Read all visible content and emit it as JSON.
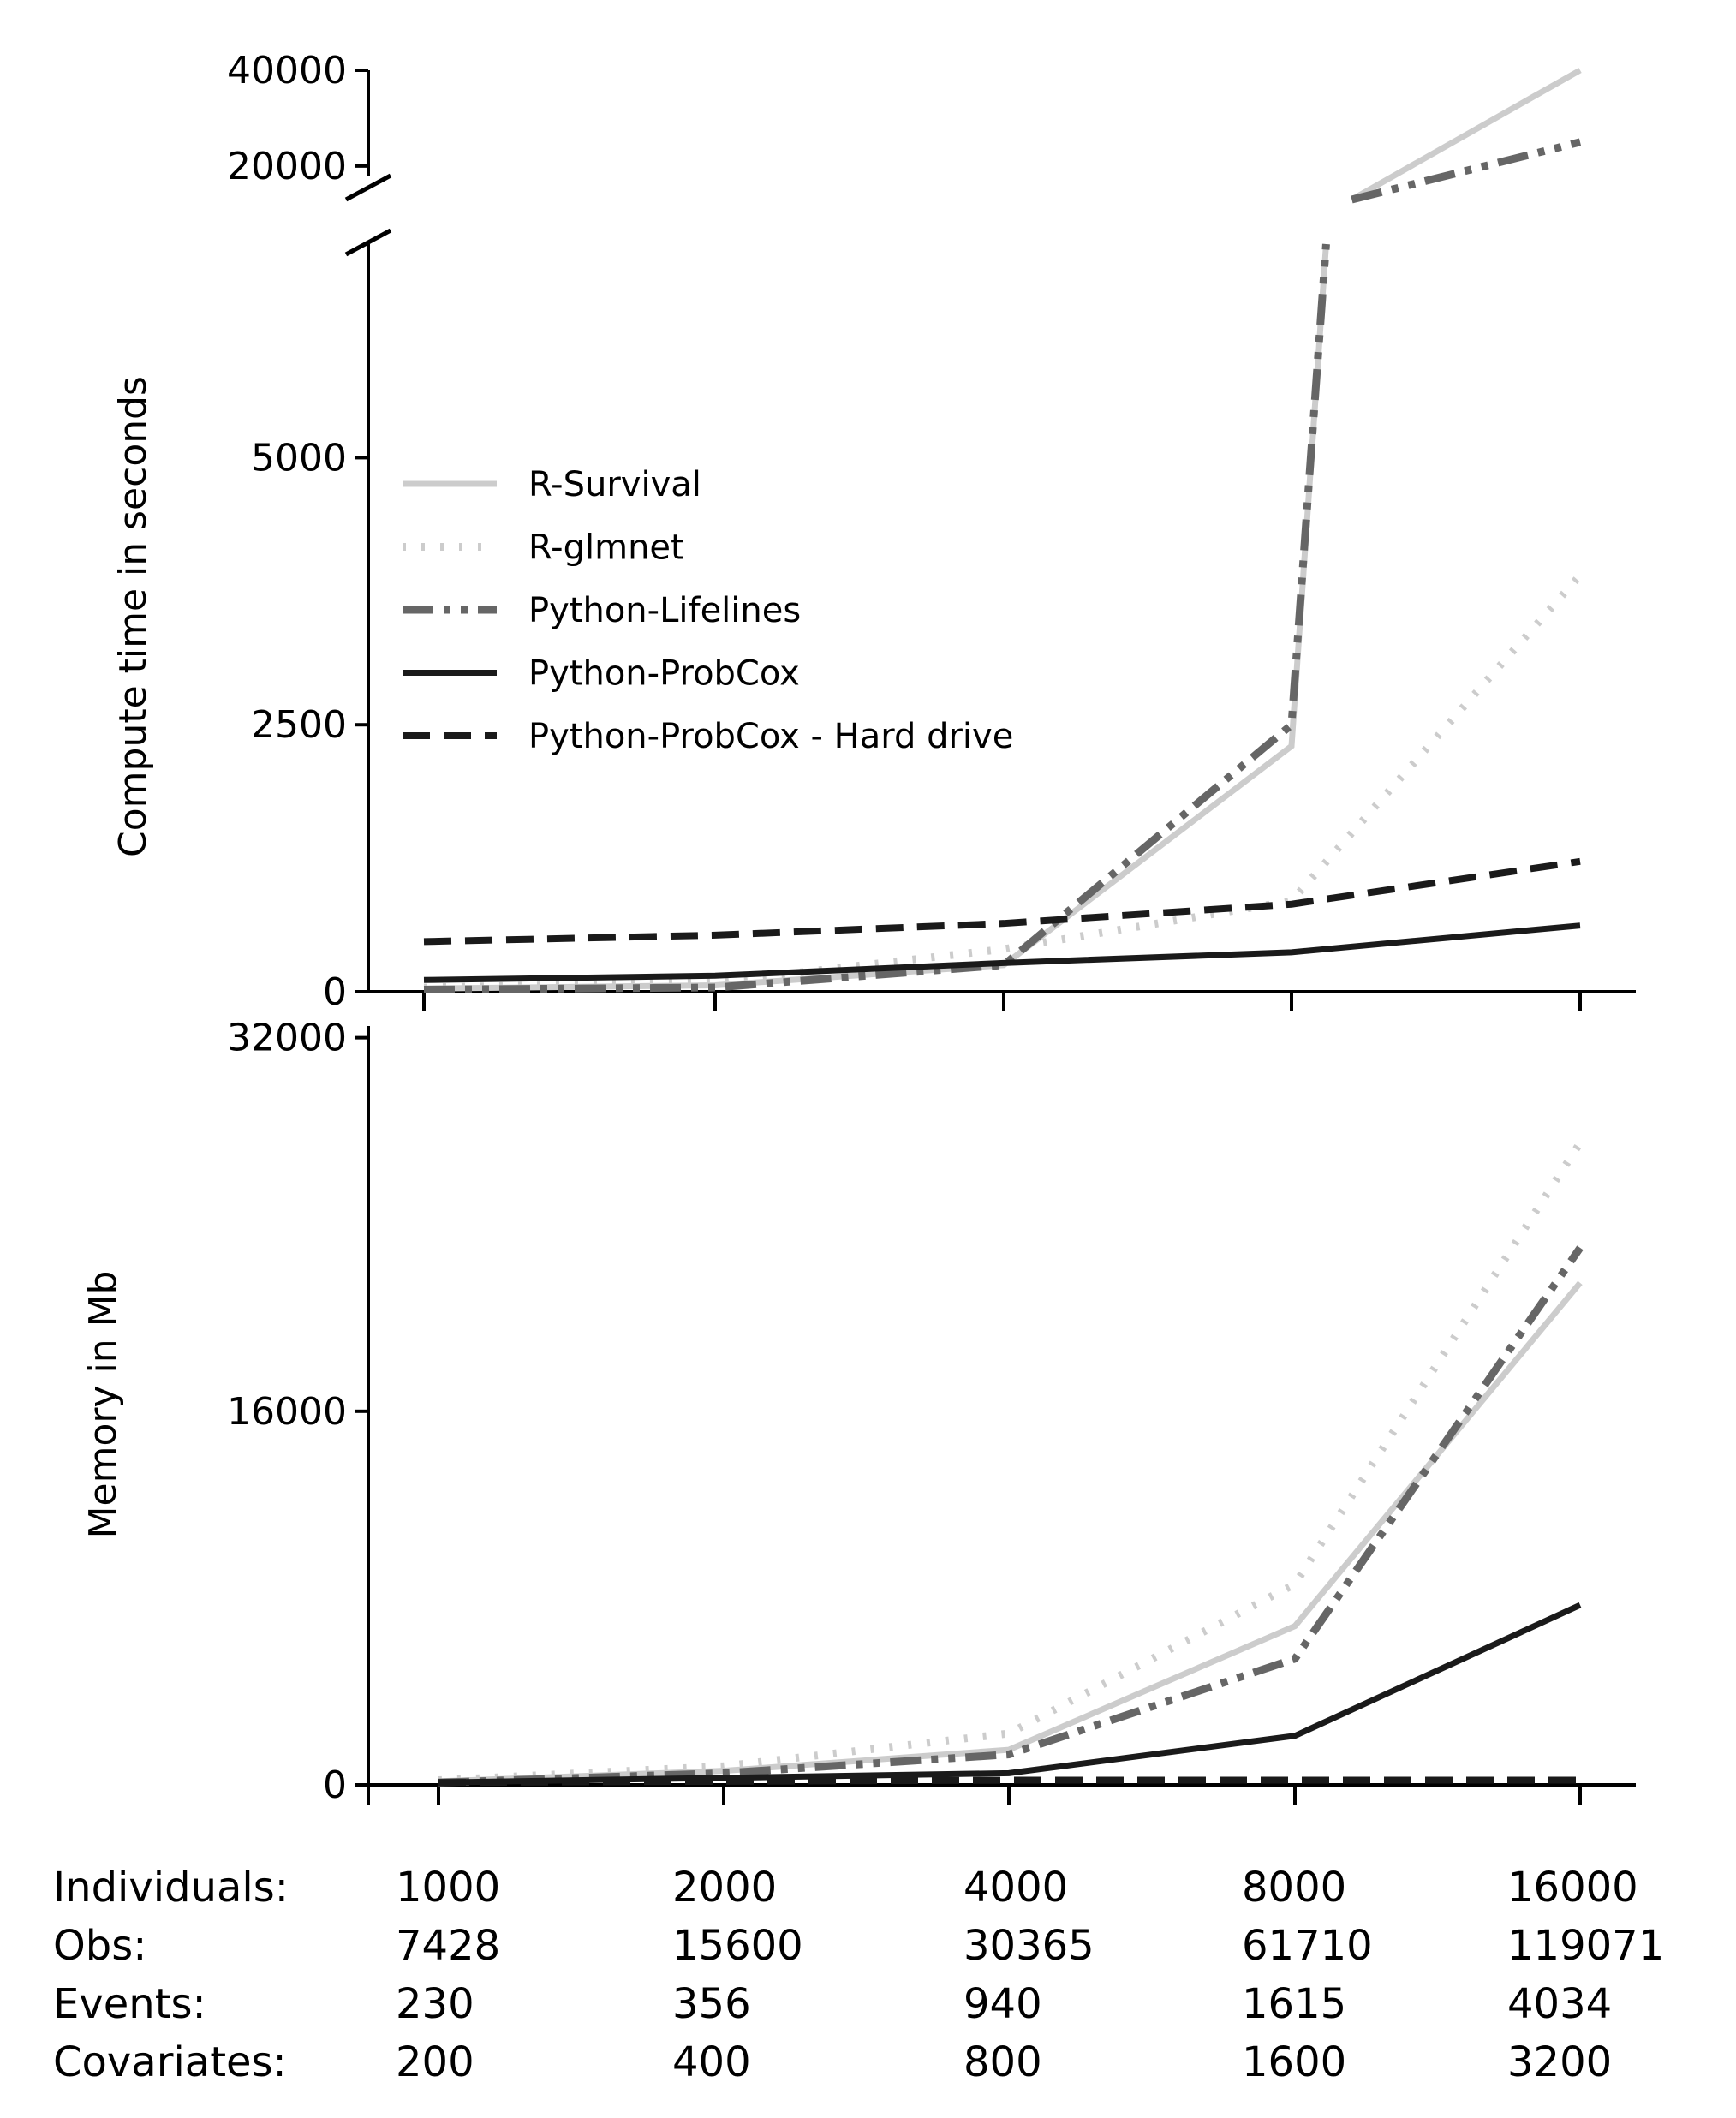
{
  "chart_data": [
    {
      "type": "line",
      "id": "compute",
      "ylabel": "Compute time in seconds",
      "x": [
        1000,
        2000,
        4000,
        8000,
        16000
      ],
      "yticks_lower": [
        0,
        2500,
        5000
      ],
      "yticks_upper": [
        20000,
        40000
      ],
      "ylim_lower": [
        0,
        7000
      ],
      "ylim_upper": [
        13000,
        40000
      ],
      "broken_axis": true,
      "legend": "center-left",
      "series": [
        {
          "name": "R-Survival",
          "values": [
            30,
            60,
            250,
            2300,
            40000
          ],
          "color": "#cccccc",
          "dash": "solid"
        },
        {
          "name": "R-glmnet",
          "values": [
            40,
            90,
            400,
            850,
            3900
          ],
          "color": "#cccccc",
          "dash": "dotted"
        },
        {
          "name": "Python-Lifelines",
          "values": [
            20,
            40,
            250,
            2500,
            25000
          ],
          "color": "#666666",
          "dash": "dashdotdot"
        },
        {
          "name": "Python-ProbCox",
          "values": [
            110,
            150,
            270,
            370,
            620
          ],
          "color": "#1a1a1a",
          "dash": "solid"
        },
        {
          "name": "Python-ProbCox - Hard drive",
          "values": [
            470,
            530,
            640,
            820,
            1220
          ],
          "color": "#1a1a1a",
          "dash": "dashed"
        }
      ]
    },
    {
      "type": "line",
      "id": "memory",
      "ylabel": "Memory in Mb",
      "x": [
        1000,
        2000,
        4000,
        8000,
        16000
      ],
      "yticks": [
        0,
        16000,
        32000
      ],
      "ylim": [
        0,
        32500
      ],
      "series": [
        {
          "name": "R-Survival",
          "values": [
            150,
            600,
            1500,
            6800,
            21500
          ]
        },
        {
          "name": "R-glmnet",
          "values": [
            200,
            800,
            2200,
            8600,
            27500
          ]
        },
        {
          "name": "Python-Lifelines",
          "values": [
            100,
            500,
            1300,
            5400,
            23000
          ]
        },
        {
          "name": "Python-ProbCox",
          "values": [
            100,
            300,
            500,
            2100,
            7700
          ]
        },
        {
          "name": "Python-ProbCox - Hard drive",
          "values": [
            100,
            150,
            200,
            200,
            200
          ]
        }
      ]
    }
  ],
  "table": {
    "row_labels": [
      "Individuals:",
      "Obs:",
      "Events:",
      "Covariates:"
    ],
    "columns": [
      [
        "1000",
        "7428",
        "230",
        "200"
      ],
      [
        "2000",
        "15600",
        "356",
        "400"
      ],
      [
        "4000",
        "30365",
        "940",
        "800"
      ],
      [
        "8000",
        "61710",
        "1615",
        "1600"
      ],
      [
        "16000",
        "119071",
        "4034",
        "3200"
      ]
    ]
  }
}
